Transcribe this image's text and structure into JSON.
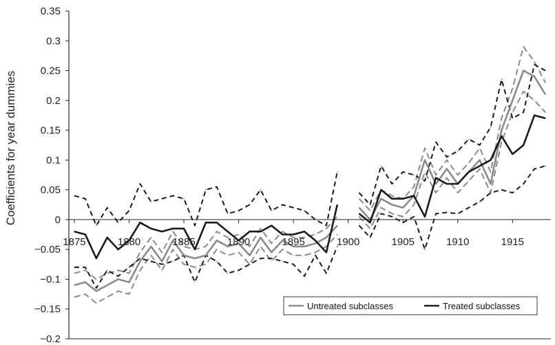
{
  "chart_data": {
    "type": "line",
    "title": "",
    "xlabel": "",
    "ylabel": "Coefficients for year dummies",
    "xlim": [
      1874.5,
      1918.5
    ],
    "ylim": [
      -0.2,
      0.35
    ],
    "x_ticks": [
      1875,
      1880,
      1885,
      1890,
      1895,
      1900,
      1905,
      1910,
      1915
    ],
    "y_ticks": [
      {
        "value": 0.35,
        "label": "0.35"
      },
      {
        "value": 0.3,
        "label": "0.3"
      },
      {
        "value": 0.25,
        "label": "0.25"
      },
      {
        "value": 0.2,
        "label": "0.2"
      },
      {
        "value": 0.15,
        "label": "0.15"
      },
      {
        "value": 0.1,
        "label": "0.1"
      },
      {
        "value": 0.05,
        "label": "0.05"
      },
      {
        "value": 0,
        "label": "0"
      },
      {
        "value": -0.05,
        "label": "−0.05"
      },
      {
        "value": -0.1,
        "label": "−0.1"
      },
      {
        "value": -0.15,
        "label": "−0.15"
      },
      {
        "value": -0.2,
        "label": "−0.2"
      }
    ],
    "grid": false,
    "legend": {
      "position": "bottom-right",
      "entries": [
        "Untreated subclasses",
        "Treated subclasses"
      ]
    },
    "colors": {
      "untreated": "#8a8a8a",
      "treated": "#1a1a1a"
    },
    "series": [
      {
        "name": "Untreated subclasses",
        "role": "estimate",
        "segments": [
          {
            "x": [
              1875,
              1876,
              1877,
              1878,
              1879,
              1880,
              1881,
              1882,
              1883,
              1884,
              1885,
              1886,
              1887,
              1888,
              1889,
              1890,
              1891,
              1892,
              1893,
              1894,
              1895,
              1896,
              1897,
              1898,
              1899
            ],
            "y": [
              -0.11,
              -0.105,
              -0.12,
              -0.11,
              -0.1,
              -0.105,
              -0.07,
              -0.045,
              -0.07,
              -0.035,
              -0.06,
              -0.065,
              -0.06,
              -0.035,
              -0.045,
              -0.04,
              -0.06,
              -0.03,
              -0.055,
              -0.035,
              -0.045,
              -0.045,
              -0.04,
              -0.03,
              -0.01
            ]
          },
          {
            "x": [
              1901,
              1902,
              1903,
              1904,
              1905,
              1906,
              1907,
              1908,
              1909,
              1910,
              1911,
              1912,
              1913,
              1914,
              1915,
              1916,
              1917,
              1918
            ],
            "y": [
              0.02,
              0.0,
              0.035,
              0.025,
              0.02,
              0.04,
              0.1,
              0.06,
              0.085,
              0.06,
              0.08,
              0.1,
              0.06,
              0.15,
              0.2,
              0.25,
              0.24,
              0.21
            ]
          }
        ]
      },
      {
        "name": "Untreated subclasses",
        "role": "upper-band",
        "segments": [
          {
            "x": [
              1875,
              1876,
              1877,
              1878,
              1879,
              1880,
              1881,
              1882,
              1883,
              1884,
              1885,
              1886,
              1887,
              1888,
              1889,
              1890,
              1891,
              1892,
              1893,
              1894,
              1895,
              1896,
              1897,
              1898,
              1899
            ],
            "y": [
              -0.09,
              -0.085,
              -0.1,
              -0.09,
              -0.085,
              -0.09,
              -0.055,
              -0.03,
              -0.055,
              -0.02,
              -0.045,
              -0.05,
              -0.045,
              -0.02,
              -0.03,
              -0.025,
              -0.045,
              -0.015,
              -0.04,
              -0.02,
              -0.03,
              -0.03,
              -0.025,
              -0.015,
              0.005
            ]
          },
          {
            "x": [
              1901,
              1902,
              1903,
              1904,
              1905,
              1906,
              1907,
              1908,
              1909,
              1910,
              1911,
              1912,
              1913,
              1914,
              1915,
              1916,
              1917,
              1918
            ],
            "y": [
              0.035,
              0.015,
              0.05,
              0.04,
              0.035,
              0.055,
              0.12,
              0.075,
              0.1,
              0.075,
              0.095,
              0.12,
              0.08,
              0.17,
              0.22,
              0.29,
              0.265,
              0.23
            ]
          }
        ]
      },
      {
        "name": "Untreated subclasses",
        "role": "lower-band",
        "segments": [
          {
            "x": [
              1875,
              1876,
              1877,
              1878,
              1879,
              1880,
              1881,
              1882,
              1883,
              1884,
              1885,
              1886,
              1887,
              1888,
              1889,
              1890,
              1891,
              1892,
              1893,
              1894,
              1895,
              1896,
              1897,
              1898,
              1899
            ],
            "y": [
              -0.13,
              -0.125,
              -0.14,
              -0.13,
              -0.12,
              -0.125,
              -0.085,
              -0.06,
              -0.085,
              -0.05,
              -0.075,
              -0.08,
              -0.075,
              -0.05,
              -0.06,
              -0.055,
              -0.075,
              -0.045,
              -0.07,
              -0.05,
              -0.06,
              -0.06,
              -0.055,
              -0.045,
              -0.025
            ]
          },
          {
            "x": [
              1901,
              1902,
              1903,
              1904,
              1905,
              1906,
              1907,
              1908,
              1909,
              1910,
              1911,
              1912,
              1913,
              1914,
              1915,
              1916,
              1917,
              1918
            ],
            "y": [
              0.005,
              -0.015,
              0.02,
              0.01,
              0.005,
              0.025,
              0.08,
              0.045,
              0.07,
              0.045,
              0.065,
              0.085,
              0.045,
              0.13,
              0.18,
              0.215,
              0.2,
              0.18
            ]
          }
        ]
      },
      {
        "name": "Treated subclasses",
        "role": "estimate",
        "segments": [
          {
            "x": [
              1875,
              1876,
              1877,
              1878,
              1879,
              1880,
              1881,
              1882,
              1883,
              1884,
              1885,
              1886,
              1887,
              1888,
              1889,
              1890,
              1891,
              1892,
              1893,
              1894,
              1895,
              1896,
              1897,
              1898,
              1899
            ],
            "y": [
              -0.02,
              -0.025,
              -0.065,
              -0.03,
              -0.05,
              -0.035,
              -0.005,
              -0.015,
              -0.02,
              -0.015,
              -0.015,
              -0.05,
              -0.005,
              -0.005,
              -0.02,
              -0.035,
              -0.02,
              -0.02,
              -0.01,
              -0.025,
              -0.025,
              -0.02,
              -0.035,
              -0.055,
              0.025
            ]
          },
          {
            "x": [
              1901,
              1902,
              1903,
              1904,
              1905,
              1906,
              1907,
              1908,
              1909,
              1910,
              1911,
              1912,
              1913,
              1914,
              1915,
              1916,
              1917,
              1918
            ],
            "y": [
              0.01,
              -0.005,
              0.05,
              0.035,
              0.035,
              0.04,
              0.005,
              0.07,
              0.06,
              0.06,
              0.08,
              0.09,
              0.1,
              0.14,
              0.11,
              0.125,
              0.175,
              0.17
            ]
          }
        ]
      },
      {
        "name": "Treated subclasses",
        "role": "upper-band",
        "segments": [
          {
            "x": [
              1875,
              1876,
              1877,
              1878,
              1879,
              1880,
              1881,
              1882,
              1883,
              1884,
              1885,
              1886,
              1887,
              1888,
              1889,
              1890,
              1891,
              1892,
              1893,
              1894,
              1895,
              1896,
              1897,
              1898,
              1899
            ],
            "y": [
              0.04,
              0.035,
              -0.01,
              0.02,
              -0.005,
              0.015,
              0.06,
              0.03,
              0.035,
              0.04,
              0.035,
              -0.01,
              0.05,
              0.055,
              0.01,
              0.015,
              0.025,
              0.05,
              0.015,
              0.025,
              0.02,
              0.015,
              0.0,
              -0.01,
              0.08
            ]
          },
          {
            "x": [
              1901,
              1902,
              1903,
              1904,
              1905,
              1906,
              1907,
              1908,
              1909,
              1910,
              1911,
              1912,
              1913,
              1914,
              1915,
              1916,
              1917,
              1918
            ],
            "y": [
              0.045,
              0.025,
              0.09,
              0.06,
              0.08,
              0.075,
              0.065,
              0.13,
              0.105,
              0.115,
              0.135,
              0.125,
              0.155,
              0.235,
              0.17,
              0.18,
              0.26,
              0.25
            ]
          }
        ]
      },
      {
        "name": "Treated subclasses",
        "role": "lower-band",
        "segments": [
          {
            "x": [
              1875,
              1876,
              1877,
              1878,
              1879,
              1880,
              1881,
              1882,
              1883,
              1884,
              1885,
              1886,
              1887,
              1888,
              1889,
              1890,
              1891,
              1892,
              1893,
              1894,
              1895,
              1896,
              1897,
              1898,
              1899
            ],
            "y": [
              -0.08,
              -0.08,
              -0.115,
              -0.085,
              -0.095,
              -0.08,
              -0.065,
              -0.07,
              -0.075,
              -0.07,
              -0.06,
              -0.105,
              -0.06,
              -0.07,
              -0.09,
              -0.085,
              -0.075,
              -0.065,
              -0.065,
              -0.07,
              -0.075,
              -0.095,
              -0.06,
              -0.09,
              -0.045
            ]
          },
          {
            "x": [
              1901,
              1902,
              1903,
              1904,
              1905,
              1906,
              1907,
              1908,
              1909,
              1910,
              1911,
              1912,
              1913,
              1914,
              1915,
              1916,
              1917,
              1918
            ],
            "y": [
              -0.01,
              -0.03,
              0.01,
              0.005,
              -0.005,
              0.005,
              -0.05,
              0.01,
              0.012,
              0.01,
              0.02,
              0.03,
              0.045,
              0.05,
              0.045,
              0.06,
              0.085,
              0.09
            ]
          }
        ]
      }
    ]
  }
}
